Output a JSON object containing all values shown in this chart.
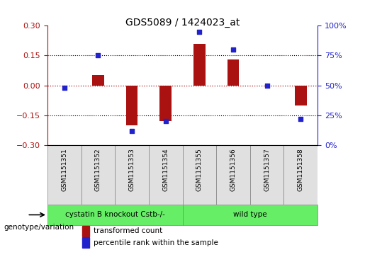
{
  "title": "GDS5089 / 1424023_at",
  "samples": [
    "GSM1151351",
    "GSM1151352",
    "GSM1151353",
    "GSM1151354",
    "GSM1151355",
    "GSM1151356",
    "GSM1151357",
    "GSM1151358"
  ],
  "red_values": [
    0.0,
    0.05,
    -0.2,
    -0.18,
    0.21,
    0.13,
    0.0,
    -0.1
  ],
  "blue_values": [
    48,
    75,
    12,
    20,
    95,
    80,
    50,
    22
  ],
  "ylim_left": [
    -0.3,
    0.3
  ],
  "ylim_right": [
    0,
    100
  ],
  "yticks_left": [
    -0.3,
    -0.15,
    0,
    0.15,
    0.3
  ],
  "yticks_right": [
    0,
    25,
    50,
    75,
    100
  ],
  "red_color": "#aa1111",
  "blue_color": "#2222cc",
  "bar_width": 0.35,
  "legend_red": "transformed count",
  "legend_blue": "percentile rank within the sample",
  "genotype_label": "genotype/variation",
  "group1_label": "cystatin B knockout Cstb-/-",
  "group2_label": "wild type",
  "group_color": "#66ee66"
}
